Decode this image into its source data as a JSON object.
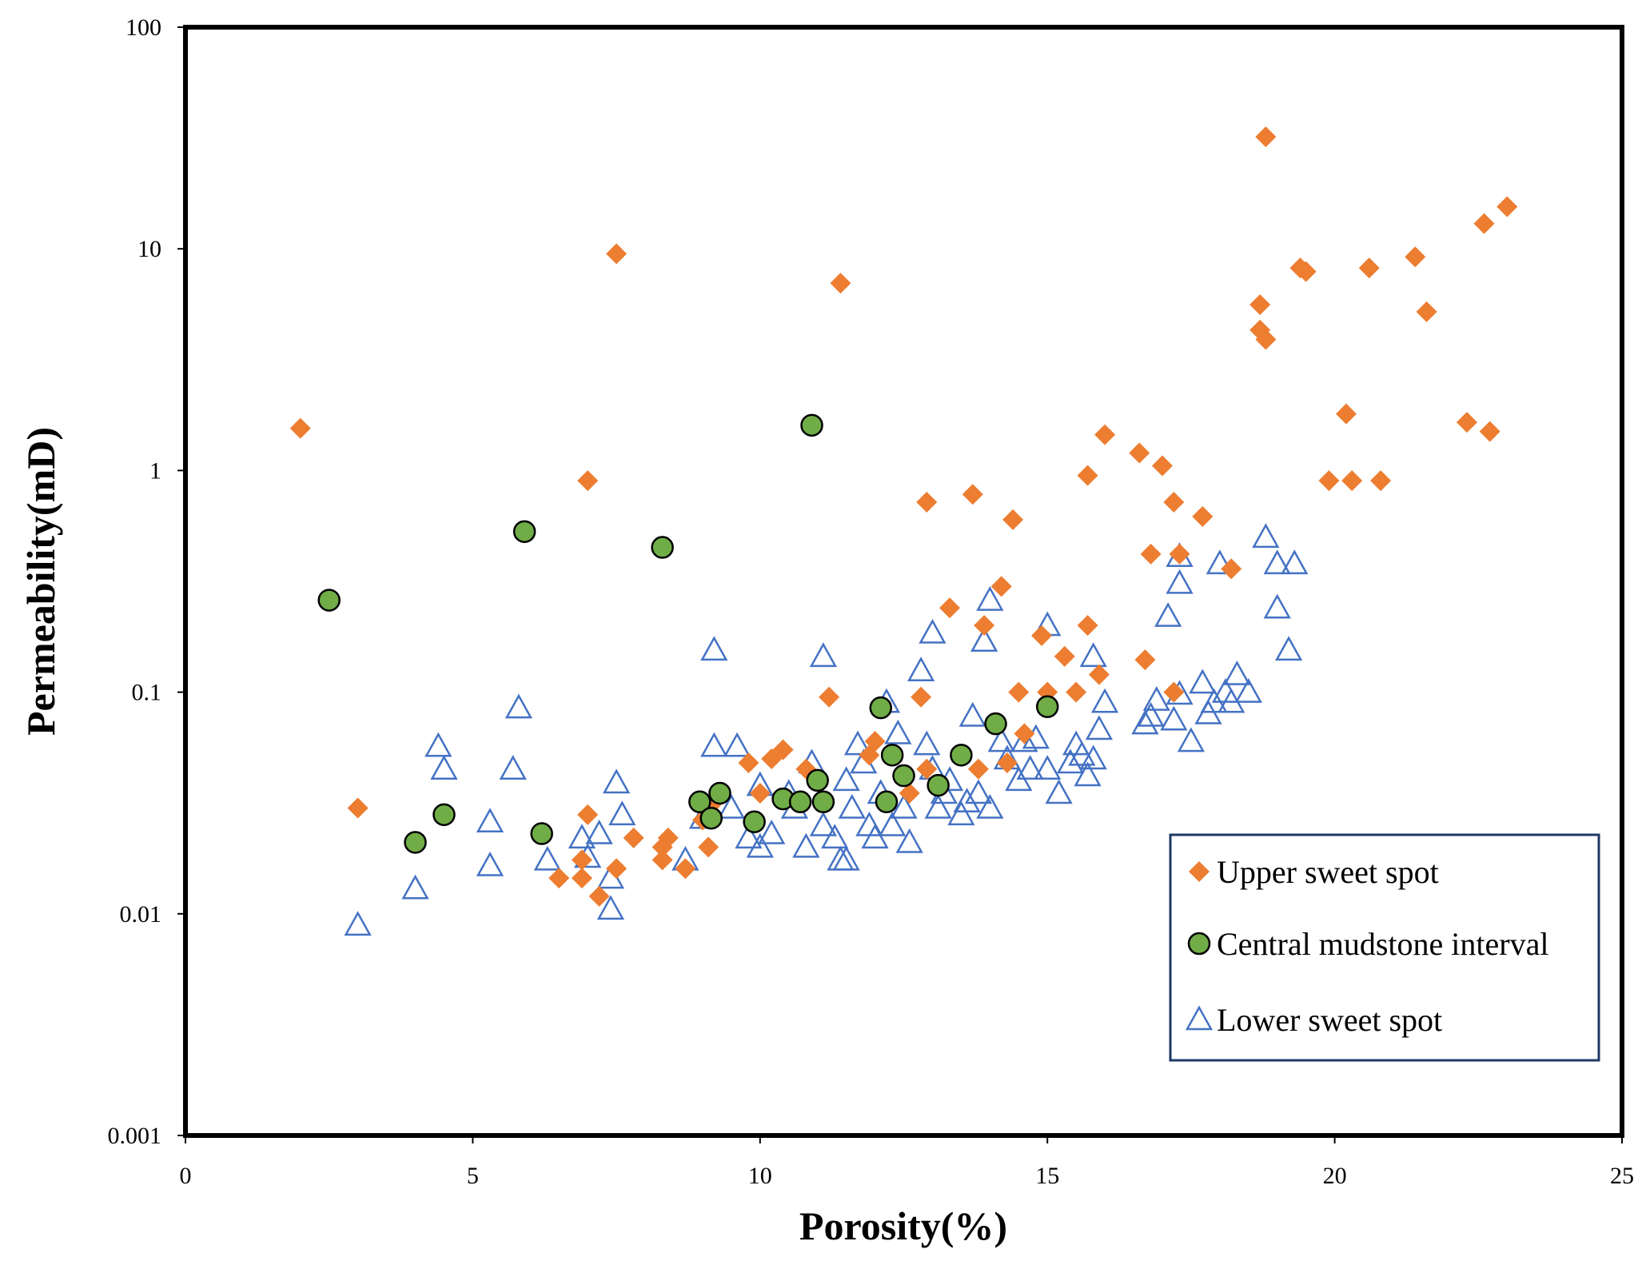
{
  "chart_data": {
    "type": "scatter",
    "title": "",
    "xlabel": "Porosity(%)",
    "ylabel": "Permeability(mD)",
    "xlim": [
      0,
      25
    ],
    "ylim": [
      0.001,
      100
    ],
    "yscale": "log",
    "grid": false,
    "legend_position": "bottom-right",
    "x_ticks": [
      "0",
      "5",
      "10",
      "15",
      "20",
      "25"
    ],
    "y_ticks": [
      "0.001",
      "0.01",
      "0.1",
      "1",
      "10",
      "100"
    ],
    "series": [
      {
        "name": "Upper sweet spot",
        "marker": "diamond",
        "color": "#ED7D31",
        "points": [
          [
            2.0,
            1.55
          ],
          [
            3.0,
            0.03
          ],
          [
            6.5,
            0.0145
          ],
          [
            7.0,
            0.9
          ],
          [
            7.0,
            0.028
          ],
          [
            6.9,
            0.0175
          ],
          [
            7.2,
            0.012
          ],
          [
            6.9,
            0.0145
          ],
          [
            7.5,
            9.5
          ],
          [
            7.5,
            0.016
          ],
          [
            7.8,
            0.022
          ],
          [
            8.3,
            0.02
          ],
          [
            8.4,
            0.022
          ],
          [
            8.3,
            0.0175
          ],
          [
            8.7,
            0.016
          ],
          [
            9.1,
            0.02
          ],
          [
            9.0,
            0.0265
          ],
          [
            9.2,
            0.032
          ],
          [
            9.8,
            0.048
          ],
          [
            10.0,
            0.035
          ],
          [
            10.2,
            0.05
          ],
          [
            10.4,
            0.055
          ],
          [
            10.8,
            0.045
          ],
          [
            11.4,
            7.0
          ],
          [
            11.2,
            0.095
          ],
          [
            11.9,
            0.052
          ],
          [
            12.0,
            0.06
          ],
          [
            12.6,
            0.035
          ],
          [
            12.8,
            0.095
          ],
          [
            12.9,
            0.72
          ],
          [
            12.9,
            0.045
          ],
          [
            13.3,
            0.24
          ],
          [
            13.7,
            0.78
          ],
          [
            13.8,
            0.045
          ],
          [
            13.9,
            0.2
          ],
          [
            14.2,
            0.3
          ],
          [
            14.3,
            0.048
          ],
          [
            14.4,
            0.6
          ],
          [
            14.5,
            0.1
          ],
          [
            14.6,
            0.065
          ],
          [
            14.9,
            0.18
          ],
          [
            15.0,
            0.1
          ],
          [
            15.3,
            0.145
          ],
          [
            15.5,
            0.1
          ],
          [
            15.7,
            0.95
          ],
          [
            15.7,
            0.2
          ],
          [
            15.9,
            0.12
          ],
          [
            16.0,
            1.45
          ],
          [
            16.6,
            1.2
          ],
          [
            16.7,
            0.14
          ],
          [
            16.8,
            0.42
          ],
          [
            17.0,
            1.05
          ],
          [
            17.2,
            0.72
          ],
          [
            17.2,
            0.1
          ],
          [
            17.3,
            0.42
          ],
          [
            17.7,
            0.62
          ],
          [
            18.2,
            0.36
          ],
          [
            18.7,
            5.6
          ],
          [
            18.7,
            4.3
          ],
          [
            18.8,
            32.0
          ],
          [
            18.8,
            3.9
          ],
          [
            19.4,
            8.2
          ],
          [
            19.5,
            7.9
          ],
          [
            19.9,
            0.9
          ],
          [
            20.2,
            1.8
          ],
          [
            20.3,
            0.9
          ],
          [
            20.6,
            8.2
          ],
          [
            20.8,
            0.9
          ],
          [
            21.4,
            9.2
          ],
          [
            21.6,
            5.2
          ],
          [
            22.3,
            1.65
          ],
          [
            22.6,
            13.0
          ],
          [
            22.7,
            1.5
          ],
          [
            23.0,
            15.5
          ]
        ]
      },
      {
        "name": "Central mudstone interval",
        "marker": "circle",
        "color": "#70AD47",
        "points": [
          [
            2.5,
            0.26
          ],
          [
            4.0,
            0.021
          ],
          [
            4.5,
            0.028
          ],
          [
            5.9,
            0.53
          ],
          [
            6.2,
            0.023
          ],
          [
            8.3,
            0.45
          ],
          [
            8.95,
            0.032
          ],
          [
            9.15,
            0.027
          ],
          [
            9.3,
            0.035
          ],
          [
            9.9,
            0.026
          ],
          [
            10.4,
            0.033
          ],
          [
            10.7,
            0.032
          ],
          [
            10.9,
            1.6
          ],
          [
            11.0,
            0.04
          ],
          [
            11.1,
            0.032
          ],
          [
            12.1,
            0.085
          ],
          [
            12.2,
            0.032
          ],
          [
            12.3,
            0.052
          ],
          [
            12.5,
            0.042
          ],
          [
            13.1,
            0.038
          ],
          [
            13.5,
            0.052
          ],
          [
            14.1,
            0.072
          ],
          [
            15.0,
            0.086
          ]
        ]
      },
      {
        "name": "Lower sweet spot",
        "marker": "triangle",
        "color": "#4472C4",
        "points": [
          [
            3.0,
            0.0089
          ],
          [
            4.0,
            0.013
          ],
          [
            4.4,
            0.057
          ],
          [
            4.5,
            0.045
          ],
          [
            5.3,
            0.026
          ],
          [
            5.3,
            0.0165
          ],
          [
            5.7,
            0.045
          ],
          [
            5.8,
            0.085
          ],
          [
            6.3,
            0.0175
          ],
          [
            6.9,
            0.022
          ],
          [
            7.0,
            0.018
          ],
          [
            7.2,
            0.023
          ],
          [
            7.4,
            0.0105
          ],
          [
            7.4,
            0.0145
          ],
          [
            7.5,
            0.039
          ],
          [
            7.6,
            0.028
          ],
          [
            8.7,
            0.0175
          ],
          [
            9.0,
            0.027
          ],
          [
            9.2,
            0.155
          ],
          [
            9.2,
            0.057
          ],
          [
            9.5,
            0.03
          ],
          [
            9.6,
            0.057
          ],
          [
            9.8,
            0.022
          ],
          [
            10.0,
            0.038
          ],
          [
            10.0,
            0.02
          ],
          [
            10.2,
            0.023
          ],
          [
            10.5,
            0.035
          ],
          [
            10.6,
            0.03
          ],
          [
            10.8,
            0.02
          ],
          [
            10.9,
            0.048
          ],
          [
            11.1,
            0.025
          ],
          [
            11.1,
            0.145
          ],
          [
            11.3,
            0.022
          ],
          [
            11.4,
            0.0175
          ],
          [
            11.5,
            0.04
          ],
          [
            11.5,
            0.0175
          ],
          [
            11.6,
            0.03
          ],
          [
            11.7,
            0.058
          ],
          [
            11.8,
            0.048
          ],
          [
            11.9,
            0.025
          ],
          [
            12.0,
            0.022
          ],
          [
            12.1,
            0.035
          ],
          [
            12.2,
            0.09
          ],
          [
            12.3,
            0.025
          ],
          [
            12.4,
            0.065
          ],
          [
            12.5,
            0.03
          ],
          [
            12.6,
            0.021
          ],
          [
            12.8,
            0.125
          ],
          [
            12.9,
            0.058
          ],
          [
            13.0,
            0.185
          ],
          [
            13.0,
            0.045
          ],
          [
            13.1,
            0.03
          ],
          [
            13.2,
            0.035
          ],
          [
            13.3,
            0.04
          ],
          [
            13.5,
            0.028
          ],
          [
            13.6,
            0.032
          ],
          [
            13.7,
            0.078
          ],
          [
            13.8,
            0.035
          ],
          [
            13.9,
            0.17
          ],
          [
            14.0,
            0.26
          ],
          [
            14.0,
            0.03
          ],
          [
            14.2,
            0.06
          ],
          [
            14.3,
            0.05
          ],
          [
            14.5,
            0.04
          ],
          [
            14.6,
            0.06
          ],
          [
            14.7,
            0.045
          ],
          [
            14.8,
            0.062
          ],
          [
            15.0,
            0.2
          ],
          [
            15.0,
            0.045
          ],
          [
            15.2,
            0.035
          ],
          [
            15.4,
            0.048
          ],
          [
            15.5,
            0.058
          ],
          [
            15.6,
            0.052
          ],
          [
            15.7,
            0.042
          ],
          [
            15.8,
            0.145
          ],
          [
            15.8,
            0.05
          ],
          [
            15.9,
            0.068
          ],
          [
            16.0,
            0.09
          ],
          [
            16.7,
            0.072
          ],
          [
            16.8,
            0.078
          ],
          [
            16.9,
            0.092
          ],
          [
            17.1,
            0.22
          ],
          [
            17.2,
            0.075
          ],
          [
            17.3,
            0.098
          ],
          [
            17.3,
            0.41
          ],
          [
            17.3,
            0.31
          ],
          [
            17.5,
            0.06
          ],
          [
            17.7,
            0.11
          ],
          [
            17.8,
            0.08
          ],
          [
            17.9,
            0.09
          ],
          [
            18.0,
            0.38
          ],
          [
            18.1,
            0.1
          ],
          [
            18.2,
            0.09
          ],
          [
            18.3,
            0.12
          ],
          [
            18.5,
            0.1
          ],
          [
            18.8,
            0.5
          ],
          [
            19.0,
            0.38
          ],
          [
            19.0,
            0.24
          ],
          [
            19.2,
            0.155
          ],
          [
            19.3,
            0.38
          ]
        ]
      }
    ]
  }
}
